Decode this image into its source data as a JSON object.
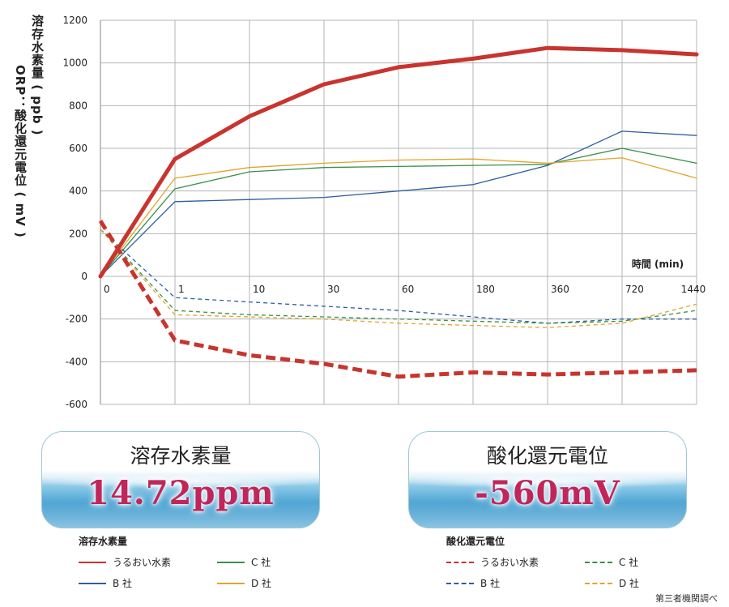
{
  "colors": {
    "uruoi": "#c8342e",
    "b": "#2c5f9e",
    "c": "#3a8f4a",
    "d": "#e0a52a",
    "grid": "#b5b5b5",
    "value_text": "#c0265a"
  },
  "chart_data": {
    "type": "line",
    "categories": [
      "0",
      "1",
      "10",
      "30",
      "60",
      "180",
      "360",
      "720",
      "1440"
    ],
    "xlabel": "時間 (min)",
    "ylabel_h2": "溶存水素量 ( ppb )",
    "ylabel_orp": "ORP：酸化還元電位 ( mV )",
    "y_ticks": [
      "1200",
      "1000",
      "800",
      "600",
      "400",
      "200",
      "0",
      "-200",
      "-400",
      "-600"
    ],
    "ylim": [
      -600,
      1200
    ],
    "grid": true,
    "series": [
      {
        "key": "h2_uruoi",
        "name": "うるおい水素",
        "metric": "溶存水素量",
        "style": "solid",
        "width": 5,
        "color_key": "uruoi",
        "values": [
          0,
          550,
          750,
          900,
          980,
          1020,
          1070,
          1060,
          1040
        ]
      },
      {
        "key": "h2_b",
        "name": "B 社",
        "metric": "溶存水素量",
        "style": "solid",
        "width": 1.3,
        "color_key": "b",
        "values": [
          0,
          350,
          360,
          370,
          400,
          430,
          520,
          680,
          660
        ]
      },
      {
        "key": "h2_c",
        "name": "C 社",
        "metric": "溶存水素量",
        "style": "solid",
        "width": 1.3,
        "color_key": "c",
        "values": [
          0,
          410,
          490,
          510,
          515,
          520,
          525,
          600,
          530
        ]
      },
      {
        "key": "h2_d",
        "name": "D 社",
        "metric": "溶存水素量",
        "style": "solid",
        "width": 1.3,
        "color_key": "d",
        "values": [
          0,
          460,
          510,
          530,
          545,
          550,
          530,
          555,
          460
        ]
      },
      {
        "key": "orp_uruoi",
        "name": "うるおい水素",
        "metric": "酸化還元電位",
        "style": "dashed",
        "width": 5,
        "color_key": "uruoi",
        "values": [
          260,
          -300,
          -370,
          -410,
          -470,
          -450,
          -460,
          -450,
          -440
        ]
      },
      {
        "key": "orp_b",
        "name": "B 社",
        "metric": "酸化還元電位",
        "style": "dashed",
        "width": 1.3,
        "color_key": "b",
        "values": [
          220,
          -100,
          -120,
          -140,
          -160,
          -190,
          -220,
          -200,
          -200
        ]
      },
      {
        "key": "orp_c",
        "name": "C 社",
        "metric": "酸化還元電位",
        "style": "dashed",
        "width": 1.3,
        "color_key": "c",
        "values": [
          220,
          -160,
          -180,
          -190,
          -200,
          -210,
          -220,
          -210,
          -160
        ]
      },
      {
        "key": "orp_d",
        "name": "D 社",
        "metric": "酸化還元電位",
        "style": "dashed",
        "width": 1.3,
        "color_key": "d",
        "values": [
          220,
          -180,
          -190,
          -200,
          -220,
          -230,
          -240,
          -220,
          -130
        ]
      }
    ]
  },
  "panels": {
    "h2": {
      "title": "溶存水素量",
      "value": "14.72ppm"
    },
    "orp": {
      "title": "酸化還元電位",
      "value": "-560mV"
    }
  },
  "legends": {
    "h2": {
      "title": "溶存水素量",
      "items": [
        "うるおい水素",
        "C 社",
        "B 社",
        "D 社"
      ]
    },
    "orp": {
      "title": "酸化還元電位",
      "items": [
        "うるおい水素",
        "C 社",
        "B 社",
        "D 社"
      ]
    }
  },
  "footnote": "第三者機関調べ"
}
